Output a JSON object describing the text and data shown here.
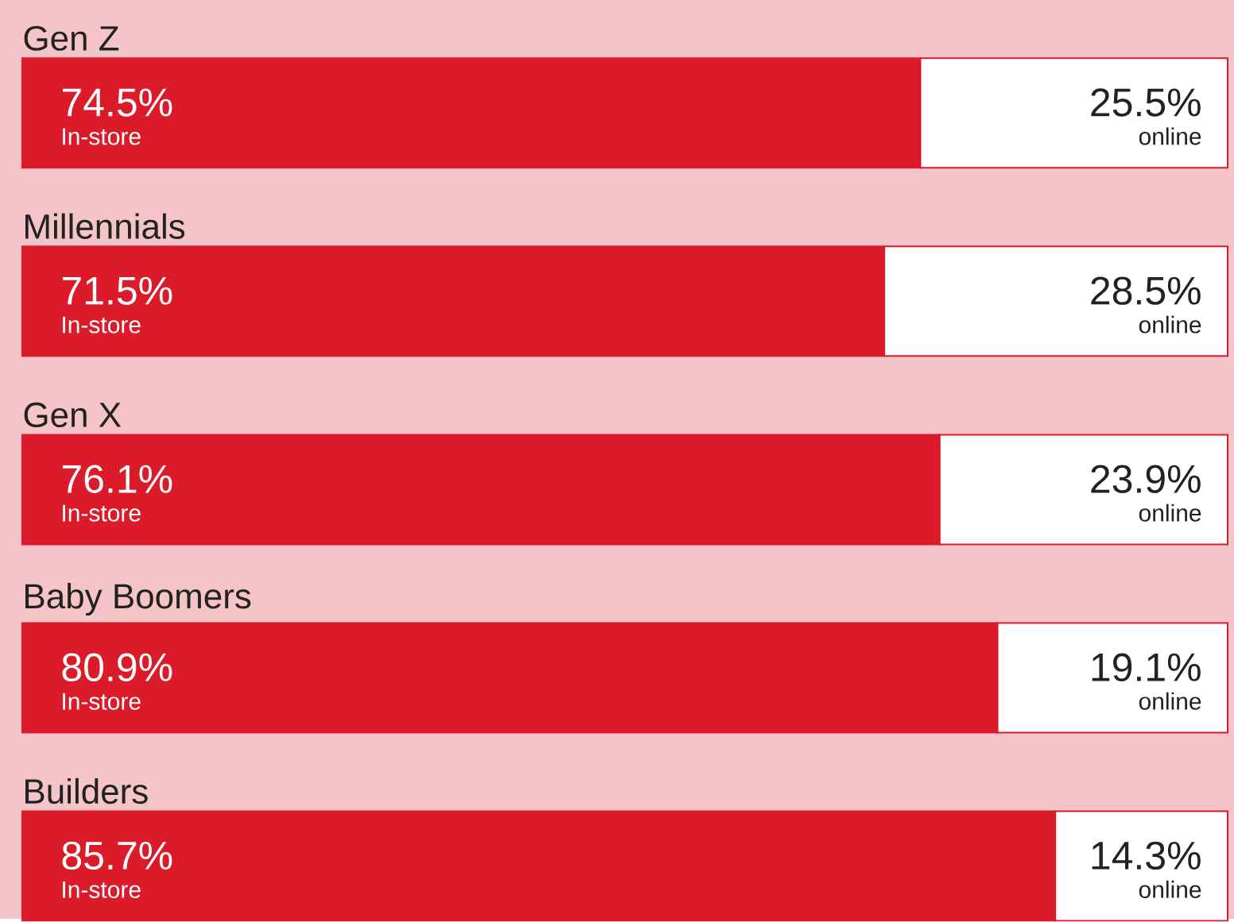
{
  "chart_data": {
    "type": "bar",
    "orientation": "horizontal",
    "stacked": true,
    "categories": [
      "Gen Z",
      "Millennials",
      "Gen X",
      "Baby Boomers",
      "Builders"
    ],
    "series": [
      {
        "name": "In-store",
        "color": "#db1a2a",
        "values": [
          74.5,
          71.5,
          76.1,
          80.9,
          85.7
        ],
        "value_labels": [
          "74.5%",
          "71.5%",
          "76.1%",
          "80.9%",
          "85.7%"
        ]
      },
      {
        "name": "online",
        "color": "#ffffff",
        "values": [
          25.5,
          28.5,
          23.9,
          19.1,
          14.3
        ],
        "value_labels": [
          "25.5%",
          "28.5%",
          "23.9%",
          "19.1%",
          "14.3%"
        ]
      }
    ]
  }
}
